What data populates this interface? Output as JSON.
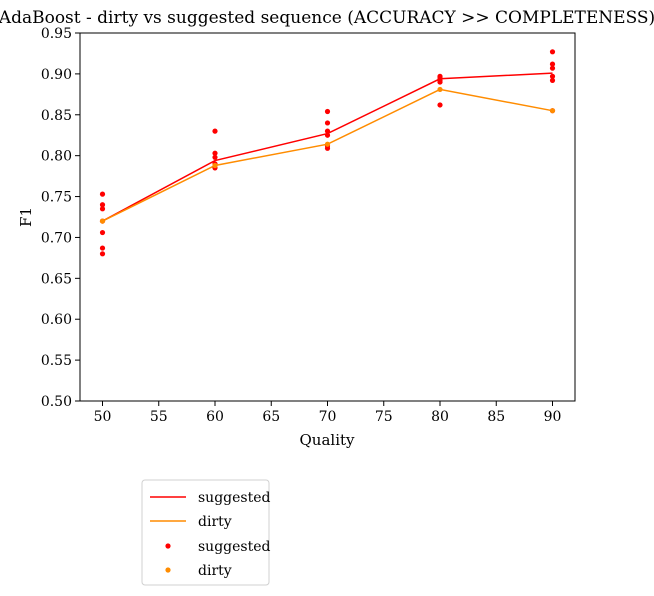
{
  "chart_data": {
    "type": "line",
    "title": "AdaBoost - dirty vs suggested sequence (ACCURACY >> COMPLETENESS)",
    "xlabel": "Quality",
    "ylabel": "F1",
    "xlim": [
      48,
      92
    ],
    "ylim": [
      0.5,
      0.95
    ],
    "xticks": [
      50,
      55,
      60,
      65,
      70,
      75,
      80,
      85,
      90
    ],
    "yticks": [
      0.5,
      0.55,
      0.6,
      0.65,
      0.7,
      0.75,
      0.8,
      0.85,
      0.9,
      0.95
    ],
    "x": [
      50,
      60,
      70,
      80,
      90
    ],
    "grid": false,
    "legend_position": "below-left",
    "series": [
      {
        "name": "suggested",
        "kind": "line",
        "color": "#ff0000",
        "values": [
          0.72,
          0.794,
          0.827,
          0.894,
          0.901
        ]
      },
      {
        "name": "dirty",
        "kind": "line",
        "color": "#ff8c00",
        "values": [
          0.72,
          0.788,
          0.814,
          0.881,
          0.855
        ]
      },
      {
        "name": "suggested",
        "kind": "scatter",
        "color": "#ff0000",
        "points": [
          [
            50,
            0.753
          ],
          [
            50,
            0.74
          ],
          [
            50,
            0.735
          ],
          [
            50,
            0.72
          ],
          [
            50,
            0.706
          ],
          [
            50,
            0.687
          ],
          [
            50,
            0.68
          ],
          [
            60,
            0.83
          ],
          [
            60,
            0.803
          ],
          [
            60,
            0.798
          ],
          [
            60,
            0.79
          ],
          [
            60,
            0.785
          ],
          [
            70,
            0.854
          ],
          [
            70,
            0.84
          ],
          [
            70,
            0.83
          ],
          [
            70,
            0.825
          ],
          [
            70,
            0.812
          ],
          [
            70,
            0.809
          ],
          [
            80,
            0.897
          ],
          [
            80,
            0.895
          ],
          [
            80,
            0.892
          ],
          [
            80,
            0.89
          ],
          [
            80,
            0.862
          ],
          [
            90,
            0.927
          ],
          [
            90,
            0.912
          ],
          [
            90,
            0.907
          ],
          [
            90,
            0.897
          ],
          [
            90,
            0.892
          ],
          [
            90,
            0.855
          ]
        ]
      },
      {
        "name": "dirty",
        "kind": "scatter",
        "color": "#ff8c00",
        "points": [
          [
            50,
            0.72
          ],
          [
            60,
            0.788
          ],
          [
            70,
            0.814
          ],
          [
            80,
            0.881
          ],
          [
            90,
            0.855
          ]
        ]
      }
    ]
  }
}
